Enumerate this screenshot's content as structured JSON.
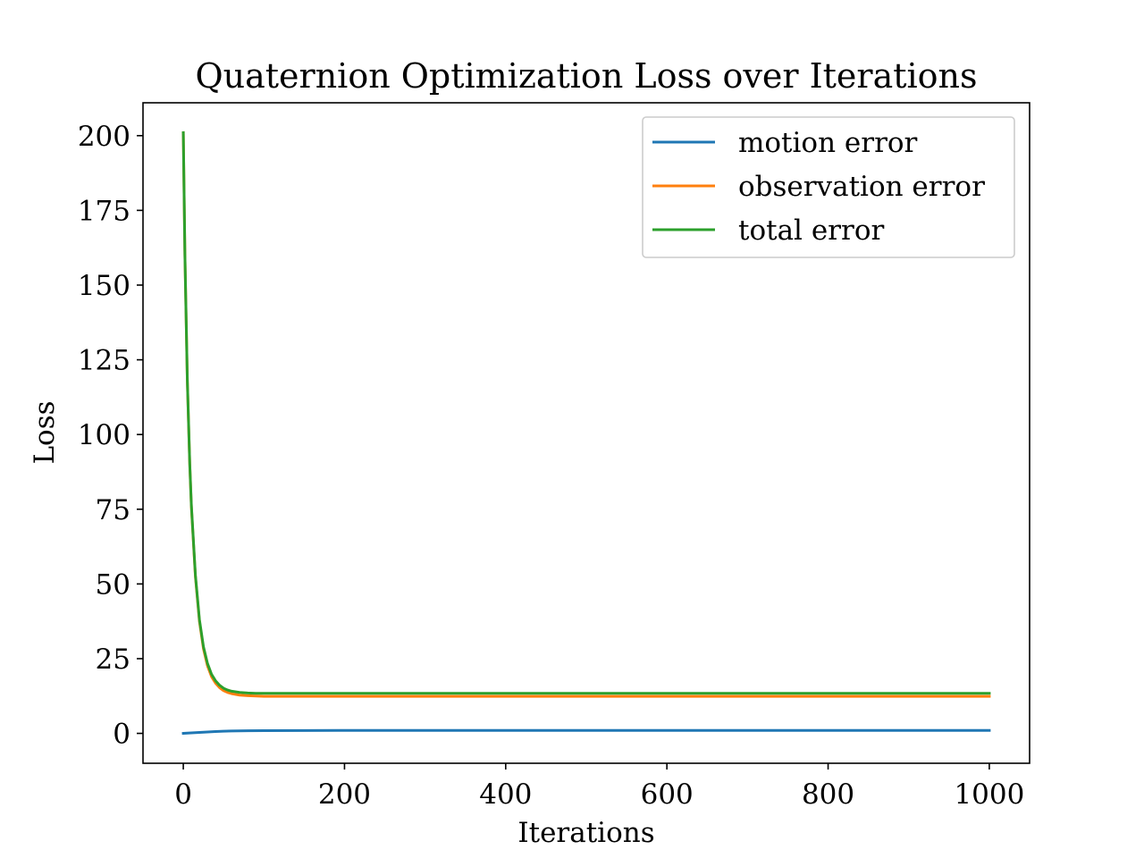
{
  "chart_data": {
    "type": "line",
    "title": "Quaternion Optimization Loss over Iterations",
    "xlabel": "Iterations",
    "ylabel": "Loss",
    "xlim": [
      -50,
      1050
    ],
    "ylim": [
      -10,
      211
    ],
    "xticks": [
      0,
      200,
      400,
      600,
      800,
      1000
    ],
    "yticks": [
      0,
      25,
      50,
      75,
      100,
      125,
      150,
      175,
      200
    ],
    "legend_position": "top-right",
    "grid": false,
    "series": [
      {
        "name": "motion error",
        "color": "#1f77b4",
        "x": [
          0,
          10,
          20,
          30,
          40,
          50,
          60,
          80,
          100,
          150,
          200,
          300,
          400,
          600,
          800,
          1000
        ],
        "values": [
          0.0,
          0.15,
          0.3,
          0.45,
          0.6,
          0.72,
          0.8,
          0.88,
          0.93,
          0.97,
          1.0,
          1.0,
          1.0,
          1.0,
          1.0,
          1.0
        ]
      },
      {
        "name": "observation error",
        "color": "#ff7f0e",
        "x": [
          0,
          2,
          5,
          8,
          10,
          15,
          20,
          25,
          30,
          35,
          40,
          45,
          50,
          55,
          60,
          70,
          80,
          90,
          100,
          120,
          150,
          200,
          300,
          400,
          600,
          800,
          1000
        ],
        "values": [
          201.0,
          160.0,
          118.0,
          90.0,
          76.0,
          52.5,
          37.5,
          28.3,
          22.6,
          19.0,
          16.8,
          15.3,
          14.3,
          13.7,
          13.3,
          12.8,
          12.6,
          12.5,
          12.4,
          12.4,
          12.4,
          12.4,
          12.4,
          12.4,
          12.4,
          12.4,
          12.4
        ]
      },
      {
        "name": "total error",
        "color": "#2ca02c",
        "x": [
          0,
          2,
          5,
          8,
          10,
          15,
          20,
          25,
          30,
          35,
          40,
          45,
          50,
          55,
          60,
          70,
          80,
          90,
          100,
          120,
          150,
          200,
          300,
          400,
          600,
          800,
          1000
        ],
        "values": [
          201.0,
          160.1,
          118.2,
          90.3,
          76.4,
          53.0,
          38.1,
          29.0,
          23.4,
          19.8,
          17.6,
          16.1,
          15.1,
          14.5,
          14.1,
          13.7,
          13.5,
          13.4,
          13.4,
          13.4,
          13.4,
          13.4,
          13.4,
          13.4,
          13.4,
          13.4,
          13.4
        ]
      }
    ]
  }
}
